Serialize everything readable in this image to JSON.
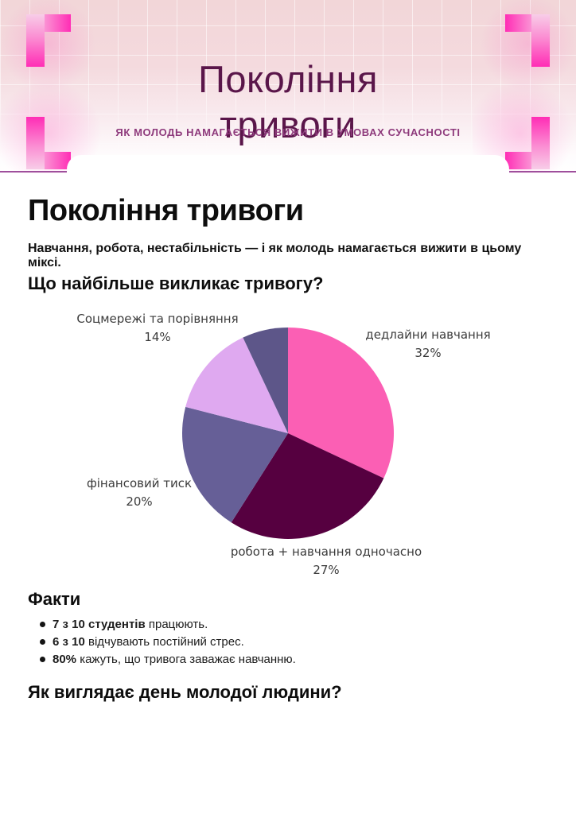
{
  "header": {
    "title_line1": "Покоління",
    "title_line2": "тривоги",
    "subtitle": "ЯК МОЛОДЬ НАМАГАЄТЬСЯ ВИЖИТИ В УМОВАХ СУЧАСНОСТІ",
    "colors": {
      "title_text": "#5a164a",
      "subtitle_text": "#8e3a7c",
      "accent_pink": "#ff2fb6",
      "banner_background_top": "#f2d6d8",
      "bottom_line": "#9e4f9c"
    }
  },
  "main": {
    "title": "Покоління тривоги",
    "intro": "Навчання, робота, нестабільність — і як молодь намагається вижити в цьому міксі.",
    "section_causes_title": "Що найбільше викликає тривогу?",
    "section_day_title": "Як виглядає день молодої людини?"
  },
  "chart_data": {
    "type": "pie",
    "title": "Що найбільше викликає тривогу?",
    "direction": "clockwise",
    "start_angle_deg": 0,
    "legend": "outside-labels",
    "slices": [
      {
        "label": "дедлайни навчання",
        "value": 32,
        "pct_text": "32%",
        "color": "#fb5fb4",
        "label_position": "right"
      },
      {
        "label": "робота + навчання одночасно",
        "value": 27,
        "pct_text": "27%",
        "color": "#560040",
        "label_position": "bottom"
      },
      {
        "label": "фінансовий тиск",
        "value": 20,
        "pct_text": "20%",
        "color": "#665f97",
        "label_position": "left"
      },
      {
        "label": "Соцмережі та порівняння",
        "value": 14,
        "pct_text": "14%",
        "color": "#dfa9f0",
        "label_position": "top-left"
      },
      {
        "label": "",
        "value": 7,
        "pct_text": "",
        "color": "#5d5689",
        "label_position": "none"
      }
    ]
  },
  "facts": {
    "title": "Факти",
    "items": [
      {
        "bold": "7 з 10 студентів",
        "rest": " працюють."
      },
      {
        "bold": "6 з 10",
        "rest": " відчувають постійний стрес."
      },
      {
        "bold": "80%",
        "rest": " кажуть, що тривога заважає навчанню."
      }
    ]
  }
}
